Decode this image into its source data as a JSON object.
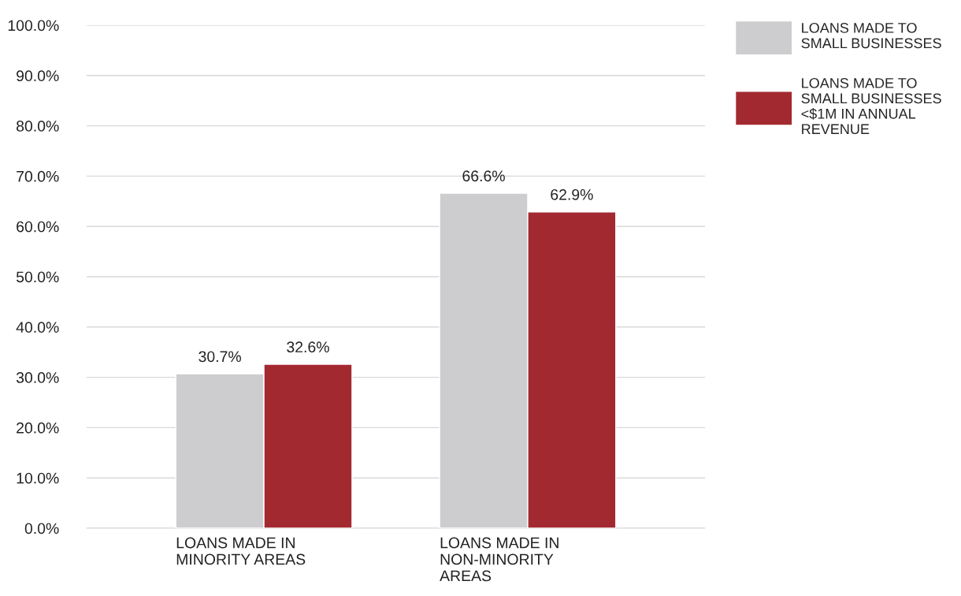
{
  "chart_data": {
    "type": "bar",
    "categories": [
      "LOANS MADE IN\nMINORITY AREAS",
      "LOANS MADE IN\nNON-MINORITY\nAREAS"
    ],
    "series": [
      {
        "name": "LOANS MADE TO\nSMALL BUSINESSES",
        "color": "#cdcdd0",
        "values": [
          30.7,
          66.6
        ],
        "value_labels": [
          "30.7%",
          "66.6%"
        ]
      },
      {
        "name": "LOANS MADE TO\nSMALL BUSINESSES\n<$1M IN ANNUAL\nREVENUE",
        "color": "#a32931",
        "values": [
          32.6,
          62.9
        ],
        "value_labels": [
          "32.6%",
          "62.9%"
        ]
      }
    ],
    "ylim": [
      0,
      100
    ],
    "yticks": [
      {
        "value": 0,
        "label": "0.0%"
      },
      {
        "value": 10,
        "label": "10.0%"
      },
      {
        "value": 20,
        "label": "20.0%"
      },
      {
        "value": 30,
        "label": "30.0%"
      },
      {
        "value": 40,
        "label": "40.0%"
      },
      {
        "value": 50,
        "label": "50.0%"
      },
      {
        "value": 60,
        "label": "60.0%"
      },
      {
        "value": 70,
        "label": "70.0%"
      },
      {
        "value": 80,
        "label": "80.0%"
      },
      {
        "value": 90,
        "label": "90.0%"
      },
      {
        "value": 100,
        "label": "100.0%"
      }
    ],
    "grid": "y",
    "legend": "top right"
  }
}
